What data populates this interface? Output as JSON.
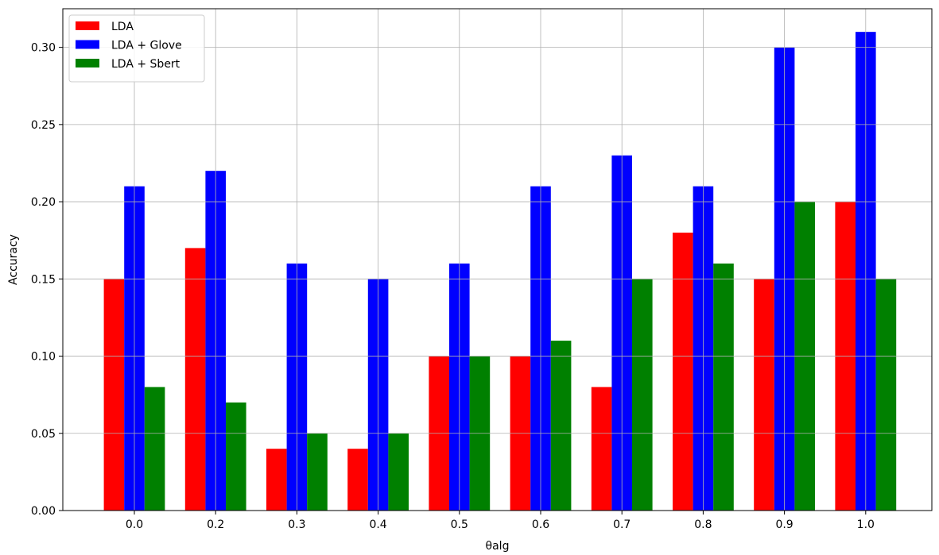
{
  "chart_data": {
    "type": "bar",
    "title": "",
    "xlabel": "θalg",
    "ylabel": "Accuracy",
    "categories": [
      "0.0",
      "0.2",
      "0.3",
      "0.4",
      "0.5",
      "0.6",
      "0.7",
      "0.8",
      "0.9",
      "1.0"
    ],
    "series": [
      {
        "name": "LDA",
        "color": "#ff0000",
        "values": [
          0.15,
          0.17,
          0.04,
          0.04,
          0.1,
          0.1,
          0.08,
          0.18,
          0.15,
          0.2
        ]
      },
      {
        "name": "LDA + Glove",
        "color": "#0000ff",
        "values": [
          0.21,
          0.22,
          0.16,
          0.15,
          0.16,
          0.21,
          0.23,
          0.21,
          0.3,
          0.31
        ]
      },
      {
        "name": "LDA + Sbert",
        "color": "#008000",
        "values": [
          0.08,
          0.07,
          0.05,
          0.05,
          0.1,
          0.11,
          0.15,
          0.16,
          0.2,
          0.15
        ]
      }
    ],
    "ylim": [
      0,
      0.325
    ],
    "yticks": [
      "0.00",
      "0.05",
      "0.10",
      "0.15",
      "0.20",
      "0.25",
      "0.30"
    ],
    "grid": true,
    "legend_position": "top-left"
  }
}
